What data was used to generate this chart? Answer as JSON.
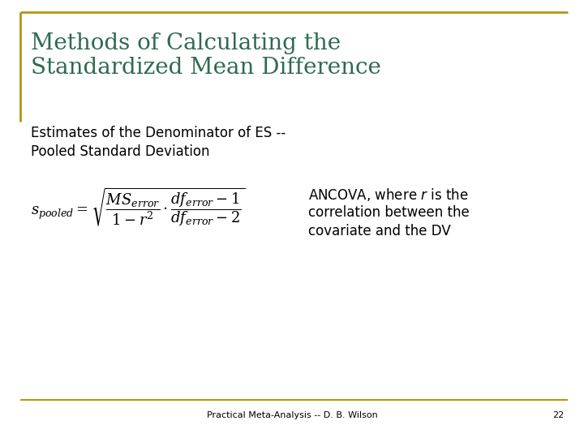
{
  "title_line1": "Methods of Calculating the",
  "title_line2": "Standardized Mean Difference",
  "title_color": "#2E6B4F",
  "subtitle_line1": "Estimates of the Denominator of ES --",
  "subtitle_line2": "Pooled Standard Deviation",
  "subtitle_color": "#000000",
  "formula": "$s_{pooled} = \\sqrt{\\dfrac{MS_{error}}{1-r^2} \\cdot \\dfrac{df_{error}-1}{df_{error}-2}}$",
  "annotation_line1": "ANCOVA, where $r$ is the",
  "annotation_line2": "correlation between the",
  "annotation_line3": "covariate and the DV",
  "footer": "Practical Meta-Analysis -- D. B. Wilson",
  "page_number": "22",
  "border_color": "#B8960C",
  "bg_color": "#FFFFFF",
  "title_fontsize": 20,
  "subtitle_fontsize": 12,
  "formula_fontsize": 13,
  "annotation_fontsize": 12,
  "footer_fontsize": 8
}
